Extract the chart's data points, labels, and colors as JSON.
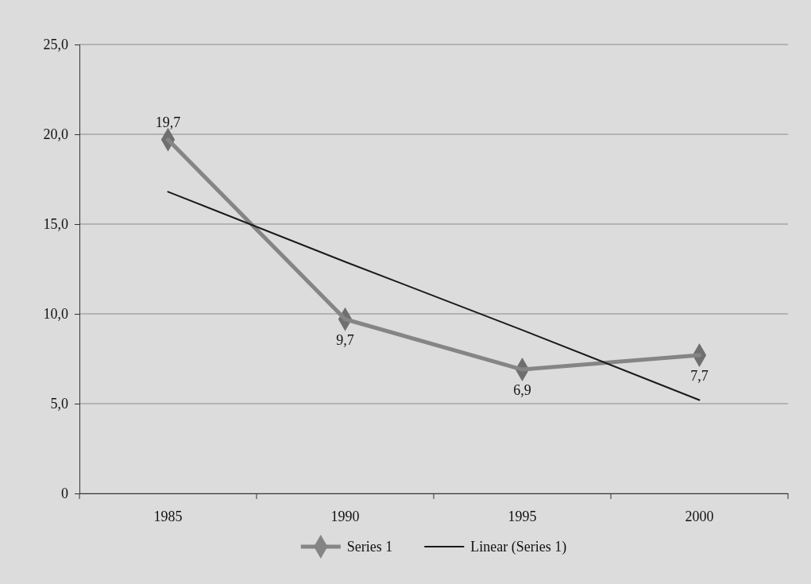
{
  "chart_data": {
    "type": "line",
    "categories": [
      "1985",
      "1990",
      "1995",
      "2000"
    ],
    "series": [
      {
        "name": "Series 1",
        "color": "#858585",
        "values": [
          19.7,
          9.7,
          6.9,
          7.7
        ],
        "marker": "diamond",
        "value_labels": [
          "19,7",
          "9,7",
          "6,9",
          "7,7"
        ]
      },
      {
        "name": "Linear (Series 1)",
        "color": "#1a1a1a",
        "values": [
          16.8,
          12.9,
          9.1,
          5.2
        ],
        "marker": "none"
      }
    ],
    "ylim": [
      0,
      25
    ],
    "yticks": [
      0,
      {
        "value": 5,
        "label": "5,0"
      },
      {
        "value": 10,
        "label": "10,0"
      },
      {
        "value": 15,
        "label": "15,0"
      },
      {
        "value": 20,
        "label": "20,0"
      },
      {
        "value": 25,
        "label": "25,0"
      }
    ],
    "grid": "y",
    "legend": "bottom",
    "line_style": "solid"
  }
}
